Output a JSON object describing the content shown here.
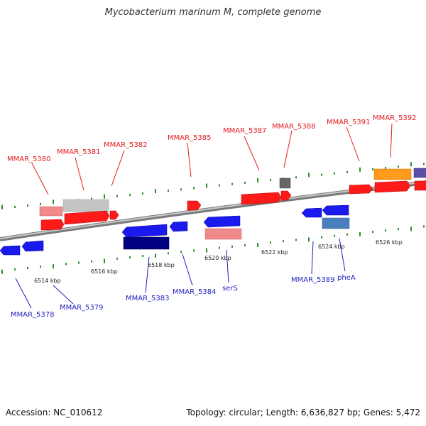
{
  "title": "Mycobacterium marinum M, complete genome",
  "footer": {
    "accession": "Accession: NC_010612",
    "summary": "Topology: circular; Length: 6,636,827 bp; Genes: 5,472"
  },
  "colors": {
    "forward_label": "#e31a1c",
    "reverse_label": "#1f1fbf",
    "backbone": "#8a8a8a",
    "tick": "#2e8b2e"
  },
  "scale_labels": [
    "6514 kbp",
    "6516 kbp",
    "6518 kbp",
    "6520 kbp",
    "6522 kbp",
    "6524 kbp",
    "6526 kbp"
  ],
  "forward_genes": [
    {
      "name": "MMAR_5380"
    },
    {
      "name": "MMAR_5381"
    },
    {
      "name": "MMAR_5382"
    },
    {
      "name": "MMAR_5385"
    },
    {
      "name": "MMAR_5387"
    },
    {
      "name": "MMAR_5388"
    },
    {
      "name": "MMAR_5391"
    },
    {
      "name": "MMAR_5392"
    }
  ],
  "reverse_genes": [
    {
      "name": "MMAR_5378"
    },
    {
      "name": "MMAR_5379"
    },
    {
      "name": "MMAR_5383"
    },
    {
      "name": "MMAR_5384"
    },
    {
      "name": "serS"
    },
    {
      "name": "MMAR_5389"
    },
    {
      "name": "pheA"
    }
  ]
}
